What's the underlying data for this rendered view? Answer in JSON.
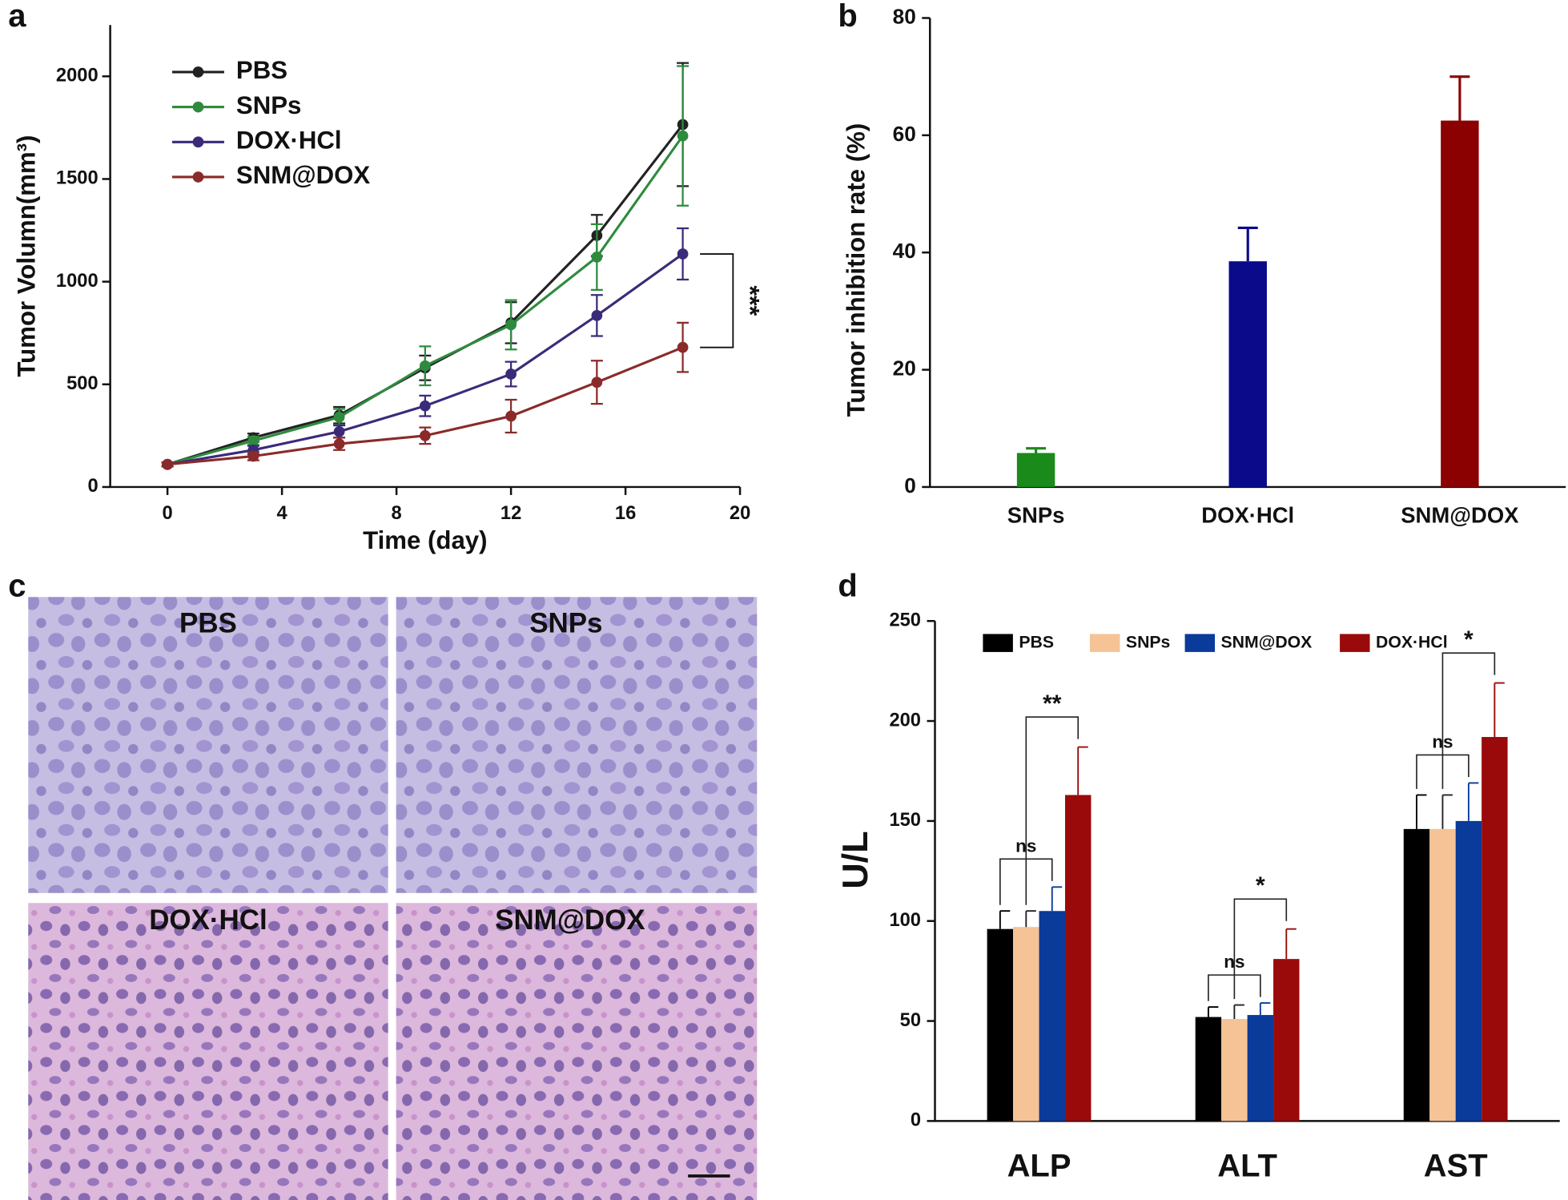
{
  "chart_data": [
    {
      "panel": "a",
      "type": "line",
      "x_label": "Time (day)",
      "y_label": "Tumor Volumn(mm³)",
      "x": [
        0,
        3,
        6,
        9,
        12,
        15,
        18
      ],
      "series": [
        {
          "name": "PBS",
          "color": "#222222",
          "values": [
            110,
            240,
            350,
            580,
            800,
            1225,
            1765
          ],
          "errors": [
            10,
            20,
            40,
            60,
            100,
            100,
            300
          ]
        },
        {
          "name": "SNPs",
          "color": "#2e8b3e",
          "values": [
            110,
            225,
            340,
            590,
            790,
            1120,
            1710
          ],
          "errors": [
            10,
            20,
            40,
            95,
            120,
            160,
            340
          ]
        },
        {
          "name": "DOX·HCl",
          "color": "#3b2a7a",
          "values": [
            110,
            180,
            270,
            395,
            550,
            835,
            1135
          ],
          "errors": [
            10,
            20,
            30,
            50,
            60,
            100,
            125
          ]
        },
        {
          "name": "SNM@DOX",
          "color": "#8b2a2a",
          "values": [
            110,
            150,
            210,
            250,
            345,
            510,
            680
          ],
          "errors": [
            10,
            20,
            30,
            40,
            80,
            105,
            120
          ]
        }
      ],
      "xlim": [
        -2,
        20
      ],
      "ylim": [
        0,
        2250
      ],
      "xticks": [
        0,
        4,
        8,
        12,
        16,
        20
      ],
      "yticks": [
        0,
        500,
        1000,
        1500,
        2000
      ],
      "annotation": "***",
      "legend": "upper left"
    },
    {
      "panel": "b",
      "type": "bar",
      "y_label": "Tumor inhibition rate (%)",
      "categories": [
        "SNPs",
        "DOX·HCl",
        "SNM@DOX"
      ],
      "values": [
        5.8,
        38.5,
        62.5
      ],
      "errors": [
        0.8,
        5.7,
        7.5
      ],
      "colors": [
        "#1a8a1a",
        "#0a0a8a",
        "#8b0000"
      ],
      "ylim": [
        0,
        80
      ],
      "yticks": [
        0,
        20,
        40,
        60,
        80
      ]
    },
    {
      "panel": "c",
      "type": "image",
      "labels": [
        "PBS",
        "SNPs",
        "DOX·HCl",
        "SNM@DOX"
      ]
    },
    {
      "panel": "d",
      "type": "grouped-bar",
      "y_label": "U/L",
      "categories": [
        "ALP",
        "ALT",
        "AST"
      ],
      "series": [
        {
          "name": "PBS",
          "color": "#000000",
          "values": [
            96,
            52,
            146
          ],
          "errors": [
            9,
            5,
            17
          ]
        },
        {
          "name": "SNPs",
          "color": "#f5c396",
          "values": [
            97,
            51,
            146
          ],
          "errors": [
            8,
            7,
            17
          ]
        },
        {
          "name": "SNM@DOX",
          "color": "#0a3a9a",
          "values": [
            105,
            53,
            150
          ],
          "errors": [
            12,
            6,
            19
          ]
        },
        {
          "name": "DOX·HCl",
          "color": "#9a0a0a",
          "values": [
            163,
            81,
            192
          ],
          "errors": [
            24,
            15,
            27
          ]
        }
      ],
      "ylim": [
        0,
        250
      ],
      "yticks": [
        0,
        50,
        100,
        150,
        200,
        250
      ],
      "ns_labels": [
        "ns",
        "ns",
        "ns"
      ],
      "significance": [
        "**",
        "*",
        "*"
      ],
      "legend": "upper left"
    }
  ]
}
